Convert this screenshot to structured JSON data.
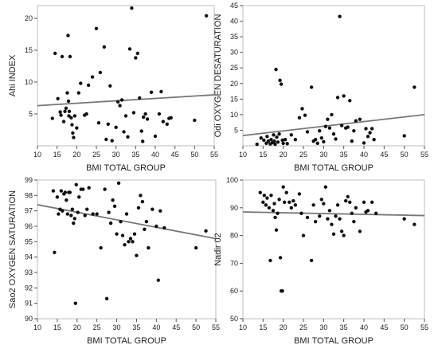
{
  "chart_data": [
    {
      "type": "scatter",
      "title": "",
      "xlabel": "BMI TOTAL GROUP",
      "ylabel": "Ahi INDEX",
      "xlim": [
        10,
        55
      ],
      "ylim": [
        0,
        22
      ],
      "xticks": [
        "10",
        "15",
        "20",
        "25",
        "30",
        "35",
        "40",
        "45",
        "50",
        "55"
      ],
      "yticks": [
        "5",
        "10",
        "15",
        "20"
      ],
      "grid": false,
      "fit_line": [
        [
          10,
          6.3
        ],
        [
          55,
          8.0
        ]
      ],
      "points": [
        [
          13.8,
          4.3
        ],
        [
          14.5,
          14.5
        ],
        [
          15.2,
          7.4
        ],
        [
          15.8,
          5.3
        ],
        [
          16.0,
          4.8
        ],
        [
          16.3,
          14.0
        ],
        [
          16.7,
          3.8
        ],
        [
          17.0,
          5.4
        ],
        [
          17.3,
          5.9
        ],
        [
          17.6,
          8.3
        ],
        [
          17.8,
          17.3
        ],
        [
          17.9,
          7.0
        ],
        [
          18.0,
          4.7
        ],
        [
          18.1,
          5.4
        ],
        [
          18.3,
          14.0
        ],
        [
          18.6,
          4.4
        ],
        [
          18.8,
          3.3
        ],
        [
          19.0,
          2.0
        ],
        [
          19.2,
          1.3
        ],
        [
          19.5,
          4.7
        ],
        [
          20.0,
          2.8
        ],
        [
          20.5,
          8.3
        ],
        [
          21.0,
          9.8
        ],
        [
          22.0,
          4.8
        ],
        [
          22.5,
          5.0
        ],
        [
          23.0,
          9.5
        ],
        [
          24.0,
          10.8
        ],
        [
          25.0,
          18.4
        ],
        [
          25.6,
          3.6
        ],
        [
          26.0,
          11.5
        ],
        [
          27.0,
          15.5
        ],
        [
          27.5,
          1.0
        ],
        [
          28.0,
          3.4
        ],
        [
          28.5,
          9.4
        ],
        [
          29.0,
          0.8
        ],
        [
          30.0,
          2.9
        ],
        [
          30.5,
          6.9
        ],
        [
          31.0,
          6.3
        ],
        [
          31.5,
          7.2
        ],
        [
          32.0,
          2.2
        ],
        [
          32.5,
          4.7
        ],
        [
          33.0,
          1.4
        ],
        [
          33.5,
          15.2
        ],
        [
          34.0,
          21.6
        ],
        [
          34.5,
          5.2
        ],
        [
          35.0,
          13.8
        ],
        [
          35.5,
          14.5
        ],
        [
          36.0,
          7.5
        ],
        [
          36.5,
          2.3
        ],
        [
          36.8,
          0.7
        ],
        [
          37.0,
          4.5
        ],
        [
          37.5,
          5.0
        ],
        [
          38.0,
          4.2
        ],
        [
          39.0,
          8.4
        ],
        [
          40.0,
          1.5
        ],
        [
          41.0,
          5.0
        ],
        [
          41.5,
          8.5
        ],
        [
          42.0,
          3.8
        ],
        [
          43.0,
          3.4
        ],
        [
          43.5,
          4.3
        ],
        [
          44.0,
          4.4
        ],
        [
          50.0,
          4.0
        ],
        [
          53.0,
          20.4
        ]
      ]
    },
    {
      "type": "scatter",
      "title": "",
      "xlabel": "BMI TOTAL GROUP",
      "ylabel": "Odi OXYGEN DESATURATION",
      "xlim": [
        10,
        55
      ],
      "ylim": [
        0,
        45
      ],
      "xticks": [
        "10",
        "15",
        "20",
        "25",
        "30",
        "35",
        "40",
        "45",
        "50",
        "55"
      ],
      "yticks": [
        "5",
        "10",
        "15",
        "20",
        "25",
        "30",
        "35",
        "40",
        "45"
      ],
      "grid": false,
      "fit_line": [
        [
          10,
          3.3
        ],
        [
          55,
          10.0
        ]
      ],
      "points": [
        [
          13.5,
          0.5
        ],
        [
          14.5,
          2.5
        ],
        [
          15.2,
          1.8
        ],
        [
          15.8,
          0.8
        ],
        [
          16.0,
          3.0
        ],
        [
          16.3,
          1.5
        ],
        [
          16.8,
          0.6
        ],
        [
          17.0,
          2.0
        ],
        [
          17.3,
          1.0
        ],
        [
          17.6,
          3.5
        ],
        [
          17.8,
          1.5
        ],
        [
          18.0,
          0.5
        ],
        [
          18.2,
          24.5
        ],
        [
          18.4,
          2.8
        ],
        [
          18.7,
          1.2
        ],
        [
          19.0,
          3.8
        ],
        [
          19.2,
          21.0
        ],
        [
          19.5,
          19.8
        ],
        [
          19.8,
          1.8
        ],
        [
          20.0,
          0.8
        ],
        [
          20.5,
          2.0
        ],
        [
          21.0,
          0.7
        ],
        [
          22.0,
          3.5
        ],
        [
          23.0,
          2.0
        ],
        [
          24.0,
          9.0
        ],
        [
          24.7,
          11.9
        ],
        [
          25.4,
          9.8
        ],
        [
          26.0,
          4.5
        ],
        [
          27.0,
          18.8
        ],
        [
          27.5,
          1.5
        ],
        [
          28.0,
          2.0
        ],
        [
          28.5,
          0.8
        ],
        [
          29.0,
          4.8
        ],
        [
          29.5,
          2.5
        ],
        [
          30.0,
          1.3
        ],
        [
          30.5,
          6.2
        ],
        [
          31.0,
          8.5
        ],
        [
          31.5,
          5.7
        ],
        [
          32.0,
          10.0
        ],
        [
          32.5,
          3.8
        ],
        [
          33.0,
          2.2
        ],
        [
          33.5,
          15.5
        ],
        [
          34.0,
          41.5
        ],
        [
          34.5,
          6.5
        ],
        [
          35.0,
          16.0
        ],
        [
          35.5,
          5.7
        ],
        [
          36.0,
          6.0
        ],
        [
          36.5,
          14.5
        ],
        [
          37.0,
          1.5
        ],
        [
          37.5,
          4.8
        ],
        [
          38.0,
          8.0
        ],
        [
          39.0,
          8.5
        ],
        [
          40.0,
          0.9
        ],
        [
          40.5,
          5.5
        ],
        [
          41.0,
          3.0
        ],
        [
          41.5,
          4.2
        ],
        [
          42.0,
          5.5
        ],
        [
          42.5,
          2.0
        ],
        [
          50.0,
          3.2
        ],
        [
          52.5,
          18.8
        ]
      ]
    },
    {
      "type": "scatter",
      "title": "",
      "xlabel": "BMI TOTAL GROUP",
      "ylabel": "Sao2 OXYGEN SATURATION",
      "xlim": [
        10,
        55
      ],
      "ylim": [
        90,
        99
      ],
      "xticks": [
        "10",
        "15",
        "20",
        "25",
        "30",
        "35",
        "40",
        "45",
        "50",
        "55"
      ],
      "yticks": [
        "90",
        "91",
        "92",
        "93",
        "94",
        "95",
        "96",
        "97",
        "98",
        "99"
      ],
      "grid": false,
      "fit_line": [
        [
          10,
          97.4
        ],
        [
          55,
          95.2
        ]
      ],
      "points": [
        [
          14.0,
          98.3
        ],
        [
          14.3,
          94.3
        ],
        [
          15.0,
          97.9
        ],
        [
          15.3,
          96.8
        ],
        [
          15.7,
          97.1
        ],
        [
          16.0,
          98.3
        ],
        [
          16.3,
          97.0
        ],
        [
          16.7,
          98.1
        ],
        [
          17.0,
          98.2
        ],
        [
          17.3,
          97.7
        ],
        [
          17.6,
          96.8
        ],
        [
          17.9,
          98.2
        ],
        [
          18.2,
          98.2
        ],
        [
          18.5,
          96.7
        ],
        [
          18.8,
          97.1
        ],
        [
          19.1,
          96.2
        ],
        [
          19.4,
          96.5
        ],
        [
          19.6,
          91.0
        ],
        [
          19.8,
          98.7
        ],
        [
          20.2,
          96.9
        ],
        [
          20.5,
          97.9
        ],
        [
          21.0,
          98.4
        ],
        [
          21.5,
          98.4
        ],
        [
          22.0,
          96.7
        ],
        [
          22.5,
          97.1
        ],
        [
          23.0,
          98.5
        ],
        [
          24.0,
          96.8
        ],
        [
          25.0,
          96.8
        ],
        [
          26.0,
          94.6
        ],
        [
          27.0,
          98.4
        ],
        [
          27.5,
          91.3
        ],
        [
          28.0,
          96.9
        ],
        [
          28.5,
          96.2
        ],
        [
          29.0,
          97.7
        ],
        [
          29.5,
          97.3
        ],
        [
          30.0,
          95.5
        ],
        [
          30.5,
          98.8
        ],
        [
          31.0,
          96.3
        ],
        [
          31.5,
          95.4
        ],
        [
          32.0,
          94.8
        ],
        [
          32.5,
          96.8
        ],
        [
          33.0,
          95.0
        ],
        [
          33.5,
          95.2
        ],
        [
          34.0,
          95.0
        ],
        [
          34.5,
          95.5
        ],
        [
          35.0,
          94.1
        ],
        [
          35.5,
          97.2
        ],
        [
          36.0,
          98.0
        ],
        [
          36.5,
          97.6
        ],
        [
          37.0,
          95.8
        ],
        [
          37.5,
          96.3
        ],
        [
          38.0,
          94.6
        ],
        [
          39.0,
          97.1
        ],
        [
          40.0,
          96.0
        ],
        [
          40.5,
          92.5
        ],
        [
          41.0,
          97.0
        ],
        [
          42.0,
          95.9
        ],
        [
          50.0,
          94.6
        ],
        [
          52.5,
          95.7
        ]
      ]
    },
    {
      "type": "scatter",
      "title": "",
      "xlabel": "BMI TOTAL GROUP",
      "ylabel": "Nadir 02",
      "xlim": [
        10,
        55
      ],
      "ylim": [
        50,
        100
      ],
      "xticks": [
        "10",
        "15",
        "20",
        "25",
        "30",
        "35",
        "40",
        "45",
        "50",
        "55"
      ],
      "yticks": [
        "50",
        "60",
        "70",
        "80",
        "90",
        "100"
      ],
      "grid": false,
      "fit_line": [
        [
          10,
          88.5
        ],
        [
          55,
          87.2
        ]
      ],
      "points": [
        [
          14.3,
          95.5
        ],
        [
          15.0,
          92.0
        ],
        [
          15.3,
          94.5
        ],
        [
          15.7,
          91.0
        ],
        [
          16.0,
          93.5
        ],
        [
          16.5,
          90.0
        ],
        [
          16.8,
          71.0
        ],
        [
          17.0,
          94.5
        ],
        [
          17.5,
          89.0
        ],
        [
          17.8,
          91.5
        ],
        [
          18.0,
          86.5
        ],
        [
          18.3,
          82.0
        ],
        [
          18.6,
          88.0
        ],
        [
          19.0,
          93.0
        ],
        [
          19.3,
          72.0
        ],
        [
          19.5,
          60.0
        ],
        [
          19.8,
          60.0
        ],
        [
          20.0,
          97.5
        ],
        [
          20.3,
          92.0
        ],
        [
          20.8,
          95.5
        ],
        [
          21.5,
          92.0
        ],
        [
          22.0,
          90.0
        ],
        [
          22.5,
          92.5
        ],
        [
          23.0,
          91.0
        ],
        [
          24.0,
          95.0
        ],
        [
          24.5,
          88.0
        ],
        [
          25.0,
          80.0
        ],
        [
          26.0,
          86.5
        ],
        [
          27.0,
          71.0
        ],
        [
          27.5,
          91.0
        ],
        [
          28.0,
          85.0
        ],
        [
          29.0,
          87.0
        ],
        [
          29.5,
          93.0
        ],
        [
          30.0,
          91.5
        ],
        [
          30.5,
          97.5
        ],
        [
          31.0,
          86.0
        ],
        [
          31.5,
          89.0
        ],
        [
          32.0,
          84.0
        ],
        [
          32.5,
          80.5
        ],
        [
          33.0,
          87.0
        ],
        [
          33.5,
          91.0
        ],
        [
          34.0,
          86.0
        ],
        [
          34.5,
          81.5
        ],
        [
          35.0,
          80.0
        ],
        [
          35.5,
          92.5
        ],
        [
          36.0,
          94.0
        ],
        [
          36.5,
          92.0
        ],
        [
          37.0,
          88.0
        ],
        [
          37.5,
          85.0
        ],
        [
          38.0,
          90.0
        ],
        [
          39.0,
          81.5
        ],
        [
          40.0,
          92.0
        ],
        [
          40.5,
          88.5
        ],
        [
          41.0,
          89.0
        ],
        [
          42.0,
          92.0
        ],
        [
          43.0,
          88.0
        ],
        [
          50.0,
          86.0
        ],
        [
          52.5,
          84.0
        ]
      ]
    }
  ]
}
